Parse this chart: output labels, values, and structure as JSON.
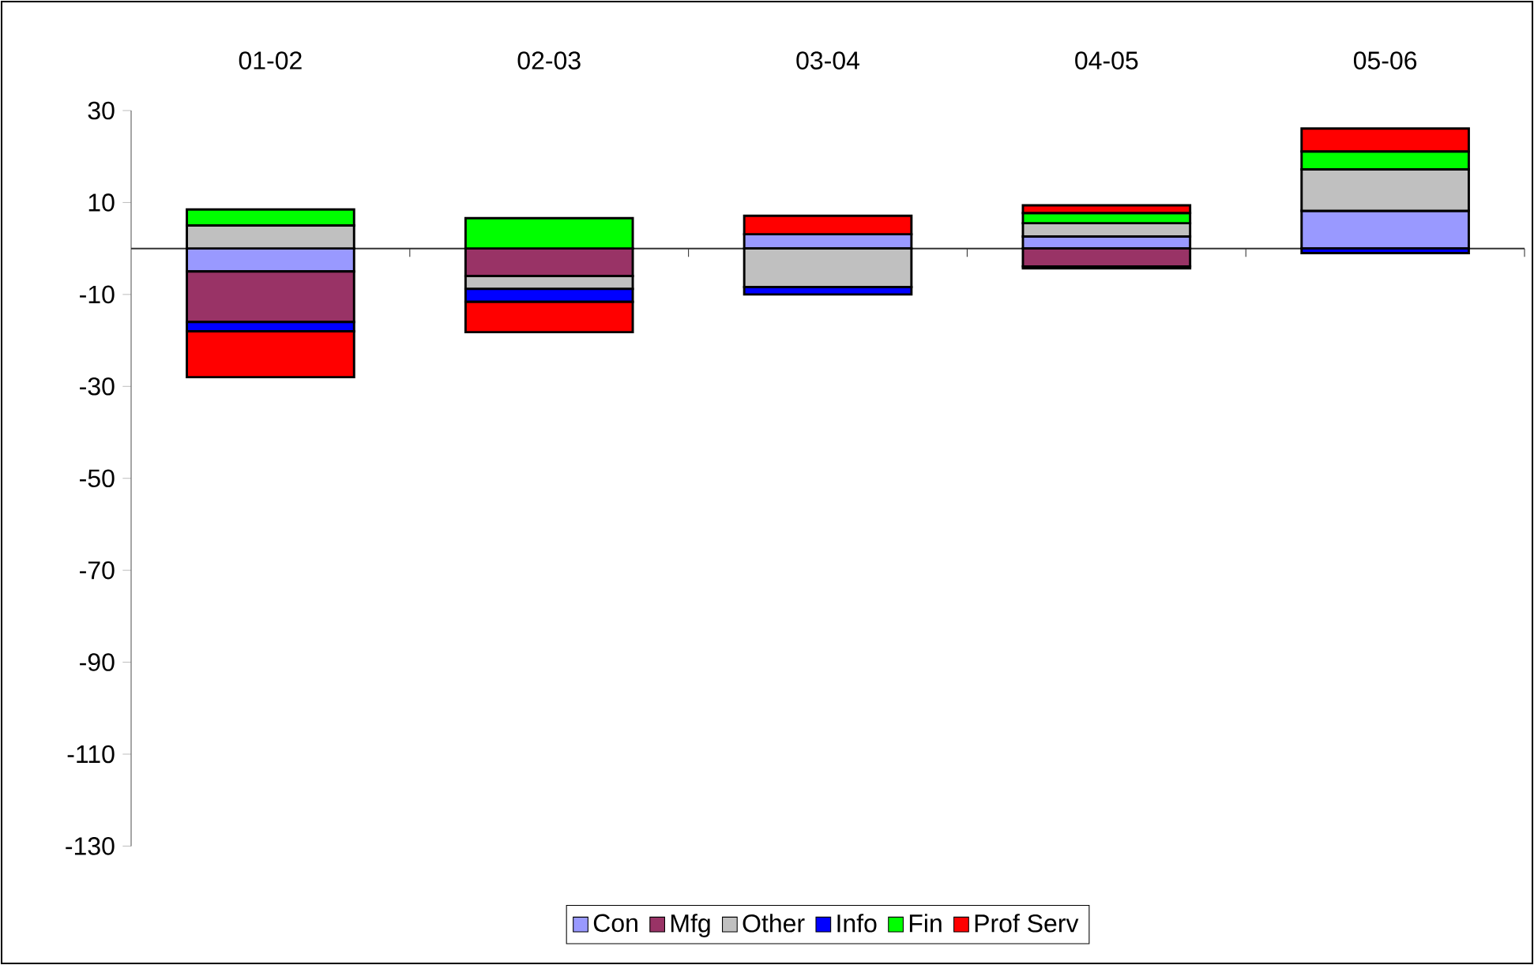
{
  "chart_data": {
    "type": "bar",
    "stacked": true,
    "categories": [
      "01-02",
      "02-03",
      "03-04",
      "04-05",
      "05-06"
    ],
    "ylim": [
      -130,
      30
    ],
    "yticks": [
      -130,
      -110,
      -90,
      -70,
      -50,
      -30,
      -10,
      10,
      30
    ],
    "grid": false,
    "legend": "bottom",
    "series": [
      {
        "name": "Con",
        "color": "#9999ff",
        "values": [
          -5,
          0,
          3.1,
          2.6,
          8.2
        ]
      },
      {
        "name": "Mfg",
        "color": "#993366",
        "values": [
          -11,
          -6,
          null,
          -3.9,
          null
        ]
      },
      {
        "name": "Other",
        "color": "#c0c0c0",
        "values": [
          5,
          -2.8,
          -8.4,
          2.9,
          9
        ]
      },
      {
        "name": "Info",
        "color": "#0000ff",
        "values": [
          -2,
          -2.8,
          -1.6,
          -0.4,
          -1
        ]
      },
      {
        "name": "Fin",
        "color": "#00ff00",
        "values": [
          3.5,
          6.6,
          0,
          2.2,
          3.9
        ]
      },
      {
        "name": "Prof Serv",
        "color": "#ff0000",
        "values": [
          -10,
          -6.6,
          4,
          1.7,
          5
        ]
      }
    ]
  }
}
